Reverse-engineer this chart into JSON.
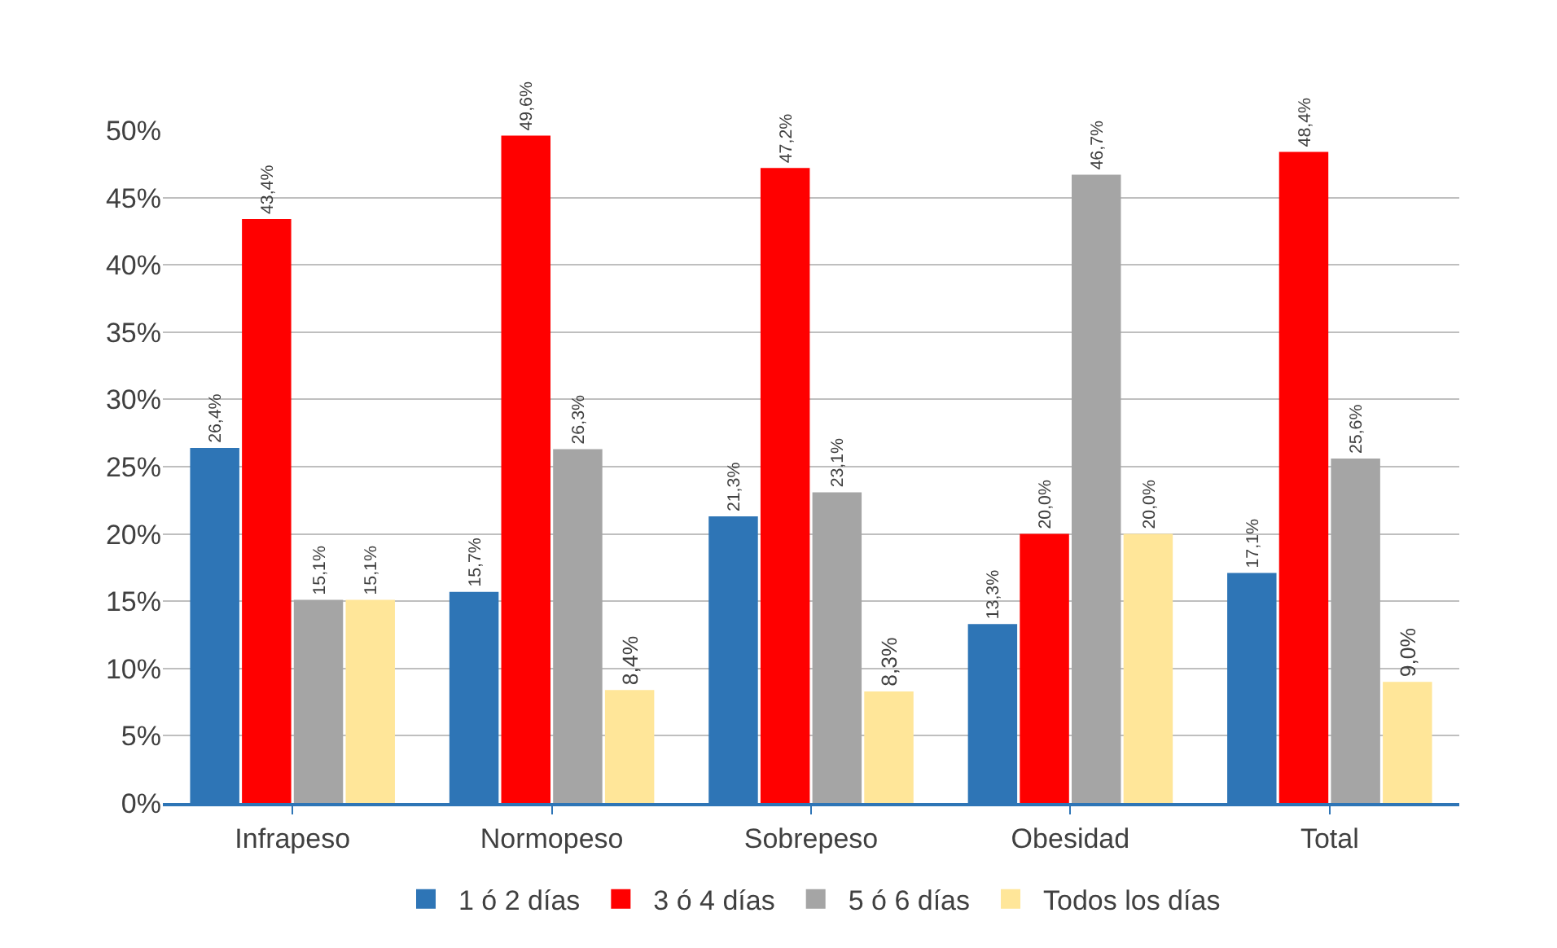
{
  "chart_data": {
    "type": "bar",
    "categories": [
      "Infrapeso",
      "Normopeso",
      "Sobrepeso",
      "Obesidad",
      "Total"
    ],
    "series": [
      {
        "name": "1 ó 2 días",
        "color": "#2e75b6",
        "values": [
          26.4,
          15.7,
          21.3,
          13.3,
          17.1
        ],
        "value_labels": [
          "26,4%",
          "15,7%",
          "21,3%",
          "13,3%",
          "17,1%"
        ]
      },
      {
        "name": "3 ó 4 días",
        "color": "#ff0000",
        "values": [
          43.4,
          49.6,
          47.2,
          20.0,
          48.4
        ],
        "value_labels": [
          "43,4%",
          "49,6%",
          "47,2%",
          "20,0%",
          "48,4%"
        ]
      },
      {
        "name": "5 ó 6 días",
        "color": "#a5a5a5",
        "values": [
          15.1,
          26.3,
          23.1,
          46.7,
          25.6
        ],
        "value_labels": [
          "15,1%",
          "26,3%",
          "23,1%",
          "46,7%",
          "25,6%"
        ]
      },
      {
        "name": "Todos los días",
        "color": "#ffe699",
        "values": [
          15.1,
          8.4,
          8.3,
          20.0,
          9.0
        ],
        "value_labels": [
          "15,1%",
          "8,4%",
          "8,3%",
          "20,0%",
          "9,0%"
        ]
      }
    ],
    "ylim": [
      0,
      50
    ],
    "yticks": [
      {
        "value": 0,
        "label": "0%"
      },
      {
        "value": 5,
        "label": "5%"
      },
      {
        "value": 10,
        "label": "10%"
      },
      {
        "value": 15,
        "label": "15%"
      },
      {
        "value": 20,
        "label": "20%"
      },
      {
        "value": 25,
        "label": "25%"
      },
      {
        "value": 30,
        "label": "30%"
      },
      {
        "value": 35,
        "label": "35%"
      },
      {
        "value": 40,
        "label": "40%"
      },
      {
        "value": 45,
        "label": "45%"
      },
      {
        "value": 50,
        "label": "50%"
      }
    ],
    "grid": "y",
    "legend": "bottom"
  }
}
